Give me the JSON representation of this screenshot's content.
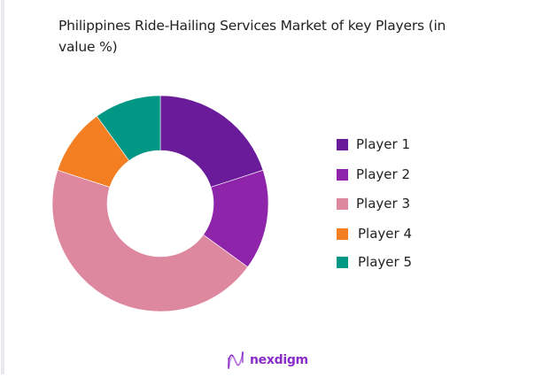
{
  "title": "Philippines Ride-Hailing Services Market of key Players (in value %)",
  "brand": {
    "name": "nexdigm",
    "icon": "nexdigm-wave-logo-icon",
    "color": "#8a2cc9"
  },
  "legend": {
    "items": [
      {
        "label": "Player 1",
        "color": "#6a1b9a"
      },
      {
        "label": "Player 2",
        "color": "#8e24aa"
      },
      {
        "label": "Player 3",
        "color": "#de88a0"
      },
      {
        "label": "Player 4",
        "color": "#f47e22"
      },
      {
        "label": "Player 5",
        "color": "#009785"
      }
    ]
  },
  "chart_data": {
    "type": "pie",
    "variant": "donut",
    "title": "Philippines Ride-Hailing Services Market of key Players (in value %)",
    "categories": [
      "Player 1",
      "Player 2",
      "Player 3",
      "Player 4",
      "Player 5"
    ],
    "values": [
      20,
      15,
      45,
      10,
      10
    ],
    "unit": "%",
    "colors": [
      "#6a1b9a",
      "#8e24aa",
      "#de88a0",
      "#f47e22",
      "#009785"
    ],
    "start_angle_deg": 0,
    "direction": "clockwise",
    "legend_position": "right",
    "data_labels": false
  }
}
